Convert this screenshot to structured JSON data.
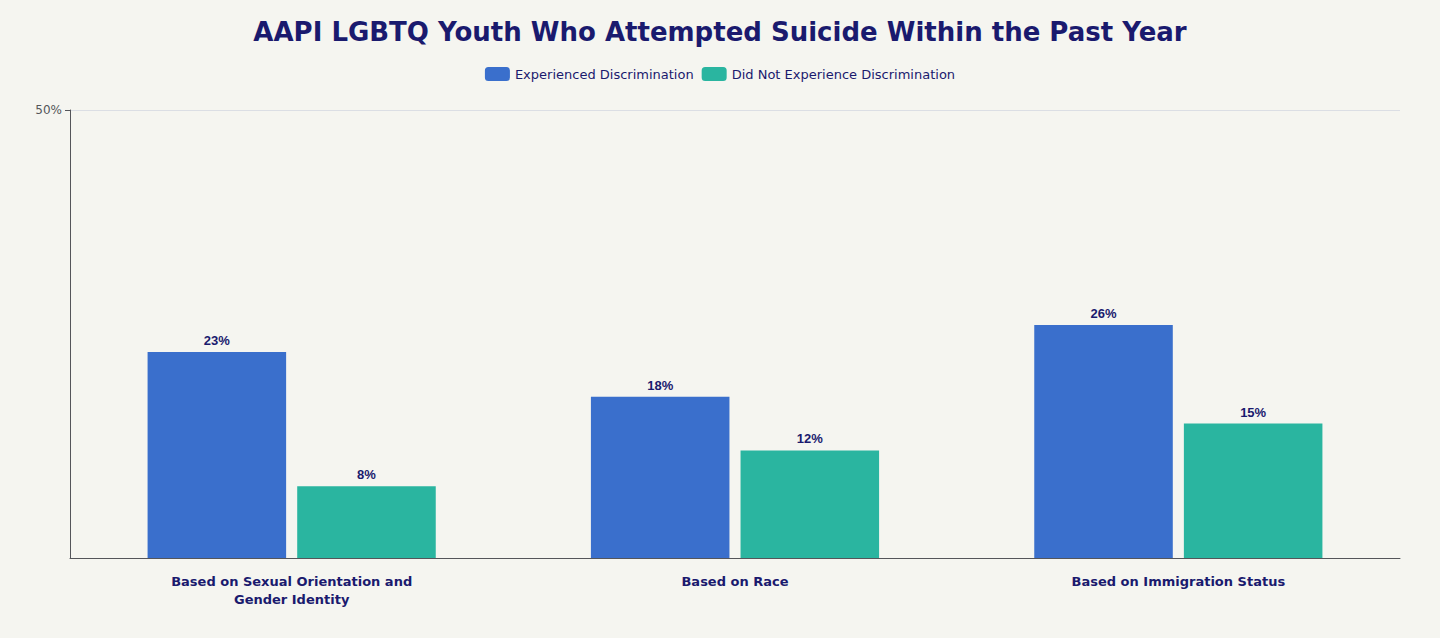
{
  "chart_data": {
    "type": "bar",
    "title": "AAPI LGBTQ Youth Who Attempted Suicide Within the Past Year",
    "categories": [
      "Based on Sexual Orientation and\nGender Identity",
      "Based on Race",
      "Based on Immigration Status"
    ],
    "series": [
      {
        "name": "Experienced Discrimination",
        "color": "#3a6fcc",
        "values": [
          23,
          18,
          26
        ],
        "value_labels": [
          "23%",
          "18%",
          "26%"
        ]
      },
      {
        "name": "Did Not Experience Discrimination",
        "color": "#2ab5a0",
        "values": [
          8,
          12,
          15
        ],
        "value_labels": [
          "8%",
          "12%",
          "15%"
        ]
      }
    ],
    "ylim": [
      0,
      50
    ],
    "yticks": [
      {
        "value": 50,
        "label": "50%"
      }
    ],
    "grid": true,
    "legend": "top",
    "data_labels": true
  }
}
